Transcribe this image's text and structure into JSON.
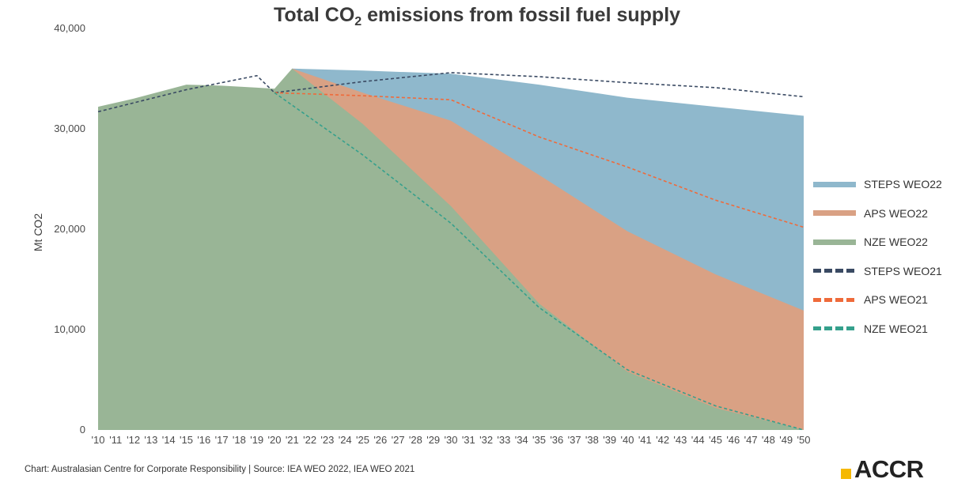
{
  "title": {
    "main": "Total CO",
    "sub": "2",
    "rest": " emissions from fossil fuel supply"
  },
  "footer": {
    "source": "Chart: Australasian Centre for Corporate Responsibility | Source: IEA WEO 2022, IEA WEO 2021"
  },
  "logo": {
    "text": "ACCR"
  },
  "chart_data": {
    "type": "area",
    "title": "Total CO2 emissions from fossil fuel supply",
    "xlabel": "",
    "ylabel": "Mt CO2",
    "ylim": [
      0,
      40000
    ],
    "yticks": [
      0,
      10000,
      20000,
      30000,
      40000
    ],
    "ytick_labels": [
      "0",
      "10,000",
      "20,000",
      "30,000",
      "40,000"
    ],
    "x": [
      2010,
      2011,
      2012,
      2013,
      2014,
      2015,
      2016,
      2017,
      2018,
      2019,
      2020,
      2021,
      2022,
      2023,
      2024,
      2025,
      2026,
      2027,
      2028,
      2029,
      2030,
      2031,
      2032,
      2033,
      2034,
      2035,
      2036,
      2037,
      2038,
      2039,
      2040,
      2041,
      2042,
      2043,
      2044,
      2045,
      2046,
      2047,
      2048,
      2049,
      2050
    ],
    "xtick_labels": [
      "'10",
      "'11",
      "'12",
      "'13",
      "'14",
      "'15",
      "'16",
      "'17",
      "'18",
      "'19",
      "'20",
      "'21",
      "'22",
      "'23",
      "'24",
      "'25",
      "'26",
      "'27",
      "'28",
      "'29",
      "'30",
      "'31",
      "'32",
      "'33",
      "'34",
      "'35",
      "'36",
      "'37",
      "'38",
      "'39",
      "'40",
      "'41",
      "'42",
      "'43",
      "'44",
      "'45",
      "'46",
      "'47",
      "'48",
      "'49",
      "'50"
    ],
    "legend_position": "right",
    "grid": false,
    "series": [
      {
        "name": "STEPS WEO22",
        "style": "area",
        "color": "#8fb8cc",
        "points": [
          [
            2021,
            36000
          ],
          [
            2025,
            35800
          ],
          [
            2030,
            35500
          ],
          [
            2035,
            34400
          ],
          [
            2040,
            33100
          ],
          [
            2045,
            32200
          ],
          [
            2050,
            31300
          ]
        ]
      },
      {
        "name": "APS WEO22",
        "style": "area",
        "color": "#d9a184",
        "points": [
          [
            2021,
            36000
          ],
          [
            2025,
            33600
          ],
          [
            2030,
            30800
          ],
          [
            2035,
            25400
          ],
          [
            2040,
            19800
          ],
          [
            2045,
            15500
          ],
          [
            2050,
            11900
          ]
        ]
      },
      {
        "name": "NZE WEO22",
        "style": "area",
        "color": "#99b596",
        "points": [
          [
            2010,
            32200
          ],
          [
            2012,
            33000
          ],
          [
            2015,
            34400
          ],
          [
            2017,
            34300
          ],
          [
            2019,
            34100
          ],
          [
            2020,
            34000
          ],
          [
            2021,
            36000
          ],
          [
            2025,
            30500
          ],
          [
            2030,
            22300
          ],
          [
            2035,
            12600
          ],
          [
            2040,
            5800
          ],
          [
            2045,
            2200
          ],
          [
            2050,
            0
          ]
        ]
      },
      {
        "name": "STEPS WEO21",
        "style": "dashed",
        "color": "#3a4a63",
        "points": [
          [
            2010,
            31700
          ],
          [
            2015,
            33900
          ],
          [
            2019,
            35300
          ],
          [
            2020,
            33600
          ],
          [
            2025,
            34700
          ],
          [
            2030,
            35600
          ],
          [
            2035,
            35200
          ],
          [
            2040,
            34600
          ],
          [
            2045,
            34100
          ],
          [
            2050,
            33200
          ]
        ]
      },
      {
        "name": "APS WEO21",
        "style": "dashed",
        "color": "#ef6a3a",
        "points": [
          [
            2020,
            33600
          ],
          [
            2025,
            33300
          ],
          [
            2030,
            32900
          ],
          [
            2035,
            29200
          ],
          [
            2040,
            26200
          ],
          [
            2045,
            22900
          ],
          [
            2050,
            20200
          ]
        ]
      },
      {
        "name": "NZE WEO21",
        "style": "dashed",
        "color": "#35a08c",
        "points": [
          [
            2020,
            33600
          ],
          [
            2025,
            27400
          ],
          [
            2030,
            20600
          ],
          [
            2035,
            12200
          ],
          [
            2040,
            6000
          ],
          [
            2045,
            2400
          ],
          [
            2050,
            0
          ]
        ]
      }
    ]
  }
}
